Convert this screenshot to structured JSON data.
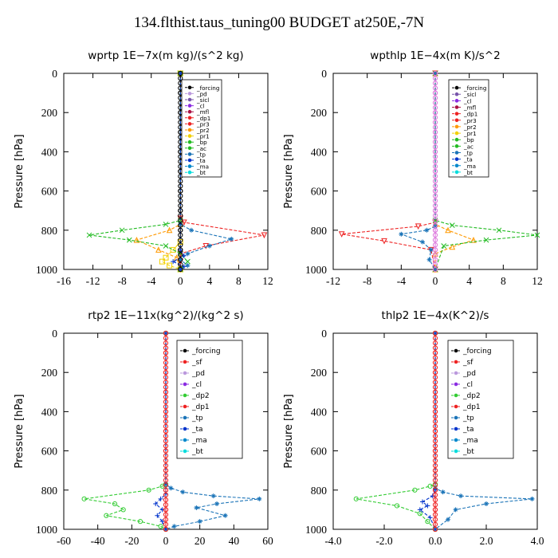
{
  "figure": {
    "title": "134.flthist.taus_tuning00  BUDGET at250E,-7N"
  },
  "chart_data": [
    {
      "type": "line",
      "title": "wprtp  1E−7x(m kg)/(s^2 kg)",
      "ylabel": "Pressure [hPa]",
      "xlim": [
        -16,
        12
      ],
      "ylim": [
        1000,
        0
      ],
      "xticks": [
        "-16",
        "-12",
        "-8",
        "-4",
        "0",
        "4",
        "8",
        "12"
      ],
      "yticks": [
        "0",
        "200",
        "400",
        "600",
        "800",
        "1000"
      ],
      "legend": [
        "_forcing",
        "_pd",
        "_sicl",
        "_cl",
        "_mfl",
        "_dp1",
        "_pr3",
        "_pr2",
        "_pr1",
        "_bp",
        "_ac",
        "_tp",
        "_ta",
        "_ma",
        "_bt"
      ],
      "series": [
        {
          "name": "_forcing",
          "color": "#000000",
          "marker": "circle",
          "x": [
            0,
            0,
            0,
            0,
            0,
            0,
            0,
            0,
            0,
            0,
            0
          ],
          "y": [
            0,
            100,
            200,
            300,
            400,
            500,
            600,
            700,
            800,
            900,
            1000
          ]
        },
        {
          "name": "_pr3",
          "color": "#ee2222",
          "marker": "tri-down",
          "x": [
            0,
            0,
            0.5,
            11.5,
            3.5,
            0,
            0,
            0
          ],
          "y": [
            0,
            740,
            760,
            825,
            880,
            920,
            960,
            1000
          ]
        },
        {
          "name": "_pr2",
          "color": "#ff9900",
          "marker": "tri-up",
          "x": [
            0,
            0,
            -1.5,
            -6,
            -3,
            -0.5,
            0
          ],
          "y": [
            0,
            770,
            800,
            850,
            900,
            940,
            1000
          ]
        },
        {
          "name": "_pr1",
          "color": "#f2d000",
          "marker": "square",
          "x": [
            0,
            0,
            -1,
            -2,
            -2.5,
            -1.5,
            0
          ],
          "y": [
            0,
            860,
            900,
            940,
            960,
            980,
            1000
          ]
        },
        {
          "name": "_ac",
          "color": "#22bb22",
          "marker": "x",
          "x": [
            0,
            0,
            -2,
            -8,
            -12.5,
            -7,
            -2,
            0,
            1,
            0
          ],
          "y": [
            0,
            750,
            770,
            800,
            825,
            850,
            880,
            920,
            960,
            1000
          ]
        },
        {
          "name": "_tp",
          "color": "#1b74b8",
          "marker": "star",
          "x": [
            0,
            0,
            1.5,
            7,
            4,
            1,
            0,
            1,
            0
          ],
          "y": [
            0,
            770,
            800,
            845,
            880,
            920,
            950,
            980,
            1000
          ]
        },
        {
          "name": "_ta",
          "color": "#0033cc",
          "marker": "plus",
          "x": [
            0,
            0,
            0.5,
            -1,
            0.5,
            0
          ],
          "y": [
            0,
            900,
            930,
            960,
            985,
            1000
          ]
        }
      ]
    },
    {
      "type": "line",
      "title": "wpthlp  1E−4x(m K)/s^2",
      "ylabel": "Pressure [hPa]",
      "xlim": [
        -12,
        12
      ],
      "ylim": [
        1000,
        0
      ],
      "xticks": [
        "-12",
        "-8",
        "-4",
        "0",
        "4",
        "8",
        "12"
      ],
      "yticks": [
        "0",
        "200",
        "400",
        "600",
        "800",
        "1000"
      ],
      "legend": [
        "_forcing",
        "_sicl",
        "_cl",
        "_mfl",
        "_dp1",
        "_pr3",
        "_pr2",
        "_pr1",
        "_bp",
        "_ac",
        "_tp",
        "_ta",
        "_ma",
        "_bt"
      ],
      "series": [
        {
          "name": "_forcing",
          "color": "#dd77dd",
          "marker": "circle",
          "x": [
            0,
            0,
            0,
            0,
            0,
            0,
            0,
            0,
            0,
            0,
            0
          ],
          "y": [
            0,
            100,
            200,
            300,
            400,
            500,
            600,
            700,
            800,
            900,
            1000
          ]
        },
        {
          "name": "_dp1",
          "color": "#ee2222",
          "marker": "tri-down",
          "x": [
            0,
            0,
            -2,
            -11,
            -6,
            -0.5,
            0
          ],
          "y": [
            0,
            760,
            780,
            820,
            855,
            900,
            1000
          ]
        },
        {
          "name": "_pr2",
          "color": "#ff9900",
          "marker": "tri-up",
          "x": [
            0,
            0,
            1.5,
            4.5,
            2,
            0,
            0
          ],
          "y": [
            0,
            770,
            800,
            850,
            885,
            920,
            1000
          ]
        },
        {
          "name": "_ac",
          "color": "#22bb22",
          "marker": "x",
          "x": [
            0,
            0,
            2,
            7.5,
            12,
            6,
            1,
            0
          ],
          "y": [
            0,
            750,
            775,
            800,
            825,
            850,
            880,
            1000
          ]
        },
        {
          "name": "_tp",
          "color": "#1b74b8",
          "marker": "star",
          "x": [
            0,
            0,
            -1,
            -4,
            -1.5,
            -0.5,
            -0.7,
            0
          ],
          "y": [
            0,
            780,
            800,
            820,
            860,
            900,
            950,
            1000
          ]
        }
      ]
    },
    {
      "type": "line",
      "title": "rtp2  1E−11x(kg^2)/(kg^2 s)",
      "ylabel": "Pressure [hPa]",
      "xlim": [
        -60,
        60
      ],
      "ylim": [
        1000,
        0
      ],
      "xticks": [
        "-60",
        "-40",
        "-20",
        "0",
        "20",
        "40",
        "60"
      ],
      "yticks": [
        "0",
        "200",
        "400",
        "600",
        "800",
        "1000"
      ],
      "legend": [
        "_forcing",
        "_sf",
        "_pd",
        "_cl",
        "_dp2",
        "_dp1",
        "_tp",
        "_ta",
        "_ma",
        "_bt"
      ],
      "series": [
        {
          "name": "_forcing",
          "color": "#ee2222",
          "marker": "circle",
          "x": [
            0,
            0,
            0,
            0,
            0,
            0,
            0,
            0,
            0,
            0,
            0
          ],
          "y": [
            0,
            100,
            200,
            300,
            400,
            500,
            600,
            700,
            800,
            900,
            1000
          ]
        },
        {
          "name": "_dp1",
          "color": "#33cc33",
          "marker": "circle",
          "x": [
            0,
            0,
            -2,
            -10,
            -48,
            -30,
            -25,
            -35,
            -15,
            -3,
            0
          ],
          "y": [
            0,
            770,
            780,
            800,
            845,
            870,
            900,
            930,
            960,
            985,
            1000
          ]
        },
        {
          "name": "_tp",
          "color": "#1b74b8",
          "marker": "star",
          "x": [
            0,
            0,
            3,
            10,
            28,
            55,
            30,
            18,
            35,
            20,
            5,
            0
          ],
          "y": [
            0,
            770,
            790,
            810,
            830,
            845,
            870,
            890,
            930,
            960,
            985,
            1000
          ]
        },
        {
          "name": "_ta",
          "color": "#0033cc",
          "marker": "plus",
          "x": [
            0,
            0,
            -3,
            -6,
            -2,
            -5,
            -2,
            0
          ],
          "y": [
            0,
            820,
            845,
            870,
            900,
            930,
            960,
            1000
          ]
        }
      ]
    },
    {
      "type": "line",
      "title": "thlp2  1E−4x(K^2)/s",
      "ylabel": "Pressure [hPa]",
      "xlim": [
        -4.0,
        4.0
      ],
      "ylim": [
        1000,
        0
      ],
      "xticks": [
        "-4.0",
        "-2.0",
        "0.0",
        "2.0",
        "4.0"
      ],
      "yticks": [
        "0",
        "200",
        "400",
        "600",
        "800",
        "1000"
      ],
      "legend": [
        "_forcing",
        "_sf",
        "_pd",
        "_cl",
        "_dp2",
        "_dp1",
        "_tp",
        "_ta",
        "_ma",
        "_bt"
      ],
      "series": [
        {
          "name": "_forcing",
          "color": "#ee2222",
          "marker": "circle",
          "x": [
            0,
            0,
            0,
            0,
            0,
            0,
            0,
            0,
            0,
            0,
            0
          ],
          "y": [
            0,
            100,
            200,
            300,
            400,
            500,
            600,
            700,
            800,
            900,
            1000
          ]
        },
        {
          "name": "_dp1",
          "color": "#33cc33",
          "marker": "circle",
          "x": [
            0,
            0,
            -0.2,
            -0.8,
            -3.1,
            -1.5,
            -0.6,
            -0.3,
            0
          ],
          "y": [
            0,
            770,
            780,
            800,
            845,
            880,
            920,
            960,
            1000
          ]
        },
        {
          "name": "_tp",
          "color": "#1b74b8",
          "marker": "star",
          "x": [
            0,
            0,
            0.3,
            1,
            3.8,
            2,
            0.8,
            0.5,
            0
          ],
          "y": [
            0,
            790,
            810,
            830,
            845,
            870,
            900,
            950,
            1000
          ]
        },
        {
          "name": "_ta",
          "color": "#0033cc",
          "marker": "plus",
          "x": [
            0,
            0,
            -0.1,
            -0.5,
            -0.3,
            -0.6,
            -0.2,
            0
          ],
          "y": [
            0,
            800,
            830,
            860,
            880,
            900,
            940,
            1000
          ]
        }
      ]
    }
  ]
}
